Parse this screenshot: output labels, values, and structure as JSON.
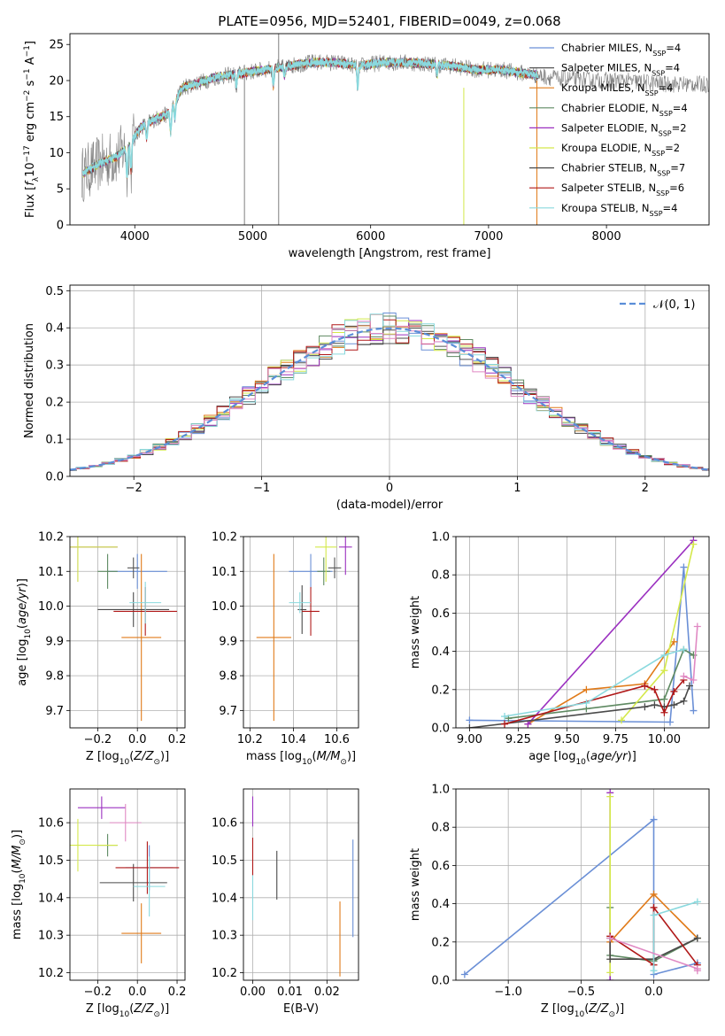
{
  "figure": {
    "title": "PLATE=0956, MJD=52401, FIBERID=0049, z=0.068"
  },
  "chart_data": [
    {
      "type": "line",
      "panel": "spectrum",
      "title": "PLATE=0956, MJD=52401, FIBERID=0049, z=0.068",
      "xlabel": "wavelength [Angstrom, rest frame]",
      "ylabel": "Flux [f_λ 10^-17 erg cm^-2 s^-1 A^-1]",
      "xlim": [
        3450,
        8870
      ],
      "ylim": [
        0,
        26.5
      ],
      "xticks": [
        4000,
        5000,
        6000,
        7000,
        8000
      ],
      "yticks": [
        0,
        5,
        10,
        15,
        20,
        25
      ],
      "legend_position": "top-right",
      "legend": [
        {
          "label": "Chabrier MILES, N",
          "sub": "SSP",
          "tail": "=4",
          "color": "#6a8fd6"
        },
        {
          "label": "Salpeter MILES, N",
          "sub": "SSP",
          "tail": "=4",
          "color": "#555555"
        },
        {
          "label": "Kroupa MILES, N",
          "sub": "SSP",
          "tail": "=4",
          "color": "#e07b1a"
        },
        {
          "label": "Chabrier ELODIE, N",
          "sub": "SSP",
          "tail": "=4",
          "color": "#5f8a62"
        },
        {
          "label": "Salpeter ELODIE, N",
          "sub": "SSP",
          "tail": "=2",
          "color": "#9b30c0"
        },
        {
          "label": "Kroupa ELODIE, N",
          "sub": "SSP",
          "tail": "=2",
          "color": "#d4e84a"
        },
        {
          "label": "Chabrier STELIB, N",
          "sub": "SSP",
          "tail": "=7",
          "color": "#4a4a4a"
        },
        {
          "label": "Salpeter STELIB, N",
          "sub": "SSP",
          "tail": "=6",
          "color": "#b01818"
        },
        {
          "label": "Kroupa STELIB, N",
          "sub": "SSP",
          "tail": "=4",
          "color": "#8ad9de"
        }
      ],
      "continuum_wavelength": [
        3550,
        3700,
        3850,
        3950,
        4050,
        4150,
        4300,
        4400,
        4500,
        4700,
        4900,
        5100,
        5300,
        5500,
        5700,
        5900,
        6100,
        6300,
        6500,
        6700,
        6900,
        7100,
        7300,
        7500,
        7700,
        7900,
        8100,
        8300,
        8500,
        8700
      ],
      "continuum_flux": [
        7.0,
        8.5,
        9.5,
        11.0,
        13.5,
        14.5,
        15.5,
        19.0,
        19.5,
        20.5,
        21.0,
        21.5,
        22.0,
        22.5,
        22.5,
        22.0,
        22.5,
        22.5,
        22.3,
        22.0,
        21.5,
        21.5,
        21.0,
        20.5,
        20.2,
        20.0,
        20.0,
        19.8,
        19.5,
        19.5
      ]
    },
    {
      "type": "bar",
      "panel": "residual-histogram",
      "xlabel": "(data-model)/error",
      "ylabel": "Normed distribution",
      "xlim": [
        -2.5,
        2.5
      ],
      "ylim": [
        0,
        0.515
      ],
      "xticks": [
        -2,
        -1,
        0,
        1,
        2
      ],
      "xtick_labels": [
        "−2",
        "−1",
        "0",
        "1",
        "2"
      ],
      "yticks": [
        0.0,
        0.1,
        0.2,
        0.3,
        0.4,
        0.5
      ],
      "grid": true,
      "bin_width": 0.1,
      "legend_position": "top-right",
      "legend": [
        {
          "label": "𝒩(0, 1)",
          "color": "#5b8ed8",
          "dashed": true
        }
      ]
    },
    {
      "type": "scatter",
      "panel": "age-vs-metallicity",
      "xlabel": "Z [log10(Z/Z⊙)]",
      "ylabel": "age  [log10(age/yr)]",
      "xlim": [
        -0.34,
        0.24
      ],
      "ylim": [
        9.65,
        10.2
      ],
      "xticks": [
        -0.2,
        0.0,
        0.2
      ],
      "xtick_labels": [
        "−0.2",
        "0.0",
        "0.2"
      ],
      "yticks": [
        9.7,
        9.8,
        9.9,
        10.0,
        10.1,
        10.2
      ],
      "grid": true,
      "points": [
        {
          "x": 0.0,
          "y": 10.1,
          "xerr": 0.15,
          "yerr": 0.05,
          "color": "#6a8fd6"
        },
        {
          "x": -0.02,
          "y": 10.11,
          "xerr": 0.03,
          "yerr": 0.03,
          "color": "#555555"
        },
        {
          "x": 0.02,
          "y": 9.91,
          "xerr": 0.1,
          "yerr": 0.24,
          "color": "#e07b1a"
        },
        {
          "x": -0.15,
          "y": 10.1,
          "xerr": 0.05,
          "yerr": 0.05,
          "color": "#5f8a62"
        },
        {
          "x": -0.3,
          "y": 10.17,
          "xerr": 0.2,
          "yerr": 0.1,
          "color": "#9b30c0"
        },
        {
          "x": -0.3,
          "y": 10.17,
          "xerr": 0.2,
          "yerr": 0.1,
          "color": "#d4e84a"
        },
        {
          "x": -0.02,
          "y": 9.99,
          "xerr": 0.18,
          "yerr": 0.05,
          "color": "#4a4a4a"
        },
        {
          "x": 0.04,
          "y": 9.985,
          "xerr": 0.16,
          "yerr": 0.07,
          "color": "#b01818"
        },
        {
          "x": 0.04,
          "y": 10.01,
          "xerr": 0.08,
          "yerr": 0.06,
          "color": "#8ad9de"
        }
      ]
    },
    {
      "type": "scatter",
      "panel": "age-vs-mass",
      "xlabel": "mass [log10(M/M⊙)]",
      "ylabel": "",
      "xlim": [
        10.17,
        10.7
      ],
      "ylim": [
        9.65,
        10.2
      ],
      "xticks": [
        10.2,
        10.4,
        10.6
      ],
      "yticks": [
        9.7,
        9.8,
        9.9,
        10.0,
        10.1,
        10.2
      ],
      "grid": true,
      "points": [
        {
          "x": 10.48,
          "y": 10.1,
          "xerr": 0.1,
          "yerr": 0.05,
          "color": "#6a8fd6"
        },
        {
          "x": 10.59,
          "y": 10.11,
          "xerr": 0.03,
          "yerr": 0.03,
          "color": "#555555"
        },
        {
          "x": 10.31,
          "y": 9.91,
          "xerr": 0.08,
          "yerr": 0.24,
          "color": "#e07b1a"
        },
        {
          "x": 10.54,
          "y": 10.1,
          "xerr": 0.03,
          "yerr": 0.04,
          "color": "#5f8a62"
        },
        {
          "x": 10.64,
          "y": 10.17,
          "xerr": 0.03,
          "yerr": 0.08,
          "color": "#9b30c0"
        },
        {
          "x": 10.55,
          "y": 10.17,
          "xerr": 0.05,
          "yerr": 0.1,
          "color": "#d4e84a"
        },
        {
          "x": 10.44,
          "y": 9.99,
          "xerr": 0.02,
          "yerr": 0.07,
          "color": "#4a4a4a"
        },
        {
          "x": 10.48,
          "y": 9.985,
          "xerr": 0.04,
          "yerr": 0.07,
          "color": "#b01818"
        },
        {
          "x": 10.43,
          "y": 10.01,
          "xerr": 0.05,
          "yerr": 0.03,
          "color": "#8ad9de"
        }
      ]
    },
    {
      "type": "line",
      "panel": "mass-weight-vs-age",
      "xlabel": "age  [log10(age/yr)]",
      "ylabel": "mass weight",
      "xlim": [
        8.93,
        10.23
      ],
      "ylim": [
        0,
        1.0
      ],
      "xticks": [
        9.0,
        9.25,
        9.5,
        9.75,
        10.0
      ],
      "yticks": [
        0.0,
        0.2,
        0.4,
        0.6,
        0.8,
        1.0
      ],
      "grid": true,
      "series": [
        {
          "color": "#6a8fd6",
          "x": [
            9.0,
            10.03,
            10.1,
            10.15
          ],
          "y": [
            0.04,
            0.03,
            0.84,
            0.09
          ]
        },
        {
          "color": "#e07b1a",
          "x": [
            9.3,
            9.6,
            9.9,
            10.05
          ],
          "y": [
            0.02,
            0.2,
            0.23,
            0.45
          ]
        },
        {
          "color": "#5f8a62",
          "x": [
            9.2,
            9.6,
            10.0,
            10.1,
            10.15
          ],
          "y": [
            0.05,
            0.1,
            0.15,
            0.41,
            0.38
          ]
        },
        {
          "color": "#9b30c0",
          "x": [
            9.3,
            10.15
          ],
          "y": [
            0.02,
            0.98
          ]
        },
        {
          "color": "#d4e84a",
          "x": [
            9.78,
            10.0,
            10.15
          ],
          "y": [
            0.04,
            0.3,
            0.96
          ]
        },
        {
          "color": "#4a4a4a",
          "x": [
            9.0,
            9.9,
            9.95,
            10.0,
            10.05,
            10.1,
            10.13
          ],
          "y": [
            0.0,
            0.11,
            0.12,
            0.11,
            0.12,
            0.14,
            0.22
          ]
        },
        {
          "color": "#b01818",
          "x": [
            9.18,
            9.9,
            9.95,
            10.0,
            10.05,
            10.1
          ],
          "y": [
            0.02,
            0.22,
            0.2,
            0.08,
            0.19,
            0.25
          ]
        },
        {
          "color": "#8ad9de",
          "x": [
            9.18,
            9.6,
            10.0,
            10.1
          ],
          "y": [
            0.06,
            0.13,
            0.38,
            0.41
          ]
        },
        {
          "color": "#e089c3",
          "x": [
            10.1,
            10.15,
            10.17
          ],
          "y": [
            0.27,
            0.25,
            0.53
          ]
        }
      ]
    },
    {
      "type": "scatter",
      "panel": "mass-vs-metallicity",
      "xlabel": "Z [log10(Z/Z⊙)]",
      "ylabel": "mass [log10(M/M⊙)]",
      "xlim": [
        -0.34,
        0.24
      ],
      "ylim": [
        10.18,
        10.69
      ],
      "xticks": [
        -0.2,
        0.0,
        0.2
      ],
      "xtick_labels": [
        "−0.2",
        "0.0",
        "0.2"
      ],
      "yticks": [
        10.2,
        10.3,
        10.4,
        10.5,
        10.6
      ],
      "grid": true,
      "points": [
        {
          "x": 0.06,
          "y": 10.48,
          "xerr": 0.12,
          "yerr": 0.06,
          "color": "#6a8fd6"
        },
        {
          "x": -0.15,
          "y": 10.54,
          "xerr": 0.05,
          "yerr": 0.03,
          "color": "#5f8a62"
        },
        {
          "x": 0.02,
          "y": 10.305,
          "xerr": 0.1,
          "yerr": 0.08,
          "color": "#e07b1a"
        },
        {
          "x": -0.18,
          "y": 10.64,
          "xerr": 0.12,
          "yerr": 0.03,
          "color": "#9b30c0"
        },
        {
          "x": -0.3,
          "y": 10.54,
          "xerr": 0.2,
          "yerr": 0.07,
          "color": "#d4e84a"
        },
        {
          "x": -0.06,
          "y": 10.6,
          "xerr": 0.08,
          "yerr": 0.05,
          "color": "#e089c3"
        },
        {
          "x": -0.02,
          "y": 10.44,
          "xerr": 0.17,
          "yerr": 0.05,
          "color": "#4a4a4a"
        },
        {
          "x": 0.05,
          "y": 10.48,
          "xerr": 0.16,
          "yerr": 0.07,
          "color": "#b01818"
        },
        {
          "x": 0.06,
          "y": 10.43,
          "xerr": 0.08,
          "yerr": 0.08,
          "color": "#8ad9de"
        }
      ]
    },
    {
      "type": "scatter",
      "panel": "mass-vs-extinction",
      "xlabel": "E(B-V)",
      "ylabel": "",
      "xlim": [
        -0.0025,
        0.0285
      ],
      "ylim": [
        10.18,
        10.69
      ],
      "xticks": [
        0.0,
        0.01,
        0.02
      ],
      "xtick_labels": [
        "0.00",
        "0.01",
        "0.02"
      ],
      "yticks": [
        10.2,
        10.3,
        10.4,
        10.5,
        10.6
      ],
      "grid": true,
      "points": [
        {
          "x": 0.0,
          "y": 10.63,
          "yerr": 0.04,
          "color": "#9b30c0"
        },
        {
          "x": 0.0,
          "y": 10.51,
          "yerr": 0.05,
          "color": "#b01818"
        },
        {
          "x": 0.0,
          "y": 10.4,
          "yerr": 0.06,
          "color": "#8ad9de"
        },
        {
          "x": 0.0065,
          "y": 10.46,
          "yerr": 0.065,
          "color": "#4a4a4a"
        },
        {
          "x": 0.0235,
          "y": 10.29,
          "yerr": 0.1,
          "color": "#e07b1a"
        },
        {
          "x": 0.027,
          "y": 10.425,
          "yerr": 0.13,
          "color": "#6a8fd6"
        }
      ]
    },
    {
      "type": "line",
      "panel": "mass-weight-vs-metallicity",
      "xlabel": "Z [log10(Z/Z⊙)]",
      "ylabel": "mass weight",
      "xlim": [
        -1.36,
        0.38
      ],
      "ylim": [
        0,
        1.0
      ],
      "xticks": [
        -1.0,
        -0.5,
        0.0
      ],
      "xtick_labels": [
        "−1.0",
        "−0.5",
        "0.0"
      ],
      "yticks": [
        0.0,
        0.2,
        0.4,
        0.6,
        0.8,
        1.0
      ],
      "grid": true,
      "series": [
        {
          "color": "#6a8fd6",
          "x": [
            -1.3,
            0.0,
            0.0,
            0.3
          ],
          "y": [
            0.03,
            0.84,
            0.03,
            0.09
          ]
        },
        {
          "color": "#e07b1a",
          "x": [
            -0.3,
            0.0,
            0.3
          ],
          "y": [
            0.2,
            0.45,
            0.22
          ]
        },
        {
          "color": "#5f8a62",
          "x": [
            -0.3,
            -0.3,
            0.0,
            0.3
          ],
          "y": [
            0.38,
            0.13,
            0.1,
            0.22
          ]
        },
        {
          "color": "#9b30c0",
          "x": [
            -0.3,
            -0.3
          ],
          "y": [
            0.0,
            0.98
          ]
        },
        {
          "color": "#d4e84a",
          "x": [
            -0.3,
            -0.3
          ],
          "y": [
            0.04,
            0.96
          ]
        },
        {
          "color": "#4a4a4a",
          "x": [
            -0.3,
            -0.3,
            0.0,
            0.3
          ],
          "y": [
            0.22,
            0.11,
            0.11,
            0.22
          ]
        },
        {
          "color": "#b01818",
          "x": [
            -0.3,
            0.0,
            0.0,
            0.3
          ],
          "y": [
            0.23,
            0.08,
            0.38,
            0.08
          ]
        },
        {
          "color": "#8ad9de",
          "x": [
            0.0,
            0.0,
            0.3
          ],
          "y": [
            0.05,
            0.34,
            0.41
          ]
        },
        {
          "color": "#e089c3",
          "x": [
            -0.3,
            0.3,
            0.3
          ],
          "y": [
            0.22,
            0.06,
            0.05
          ]
        }
      ]
    }
  ]
}
